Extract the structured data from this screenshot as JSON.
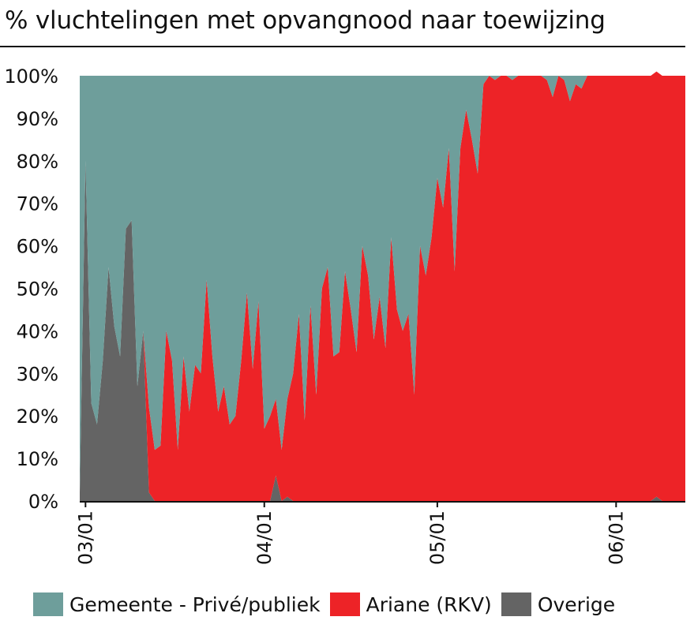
{
  "title": "% vluchtelingen met opvangnood naar toewijzing",
  "chart_data": {
    "type": "area",
    "stacked": true,
    "title": "% vluchtelingen met opvangnood naar toewijzing",
    "xlabel": "",
    "ylabel": "",
    "ylim": [
      0,
      100
    ],
    "y_ticks": [
      "0%",
      "10%",
      "20%",
      "30%",
      "40%",
      "50%",
      "60%",
      "70%",
      "80%",
      "90%",
      "100%"
    ],
    "x_ticks": [
      {
        "label": "03/01",
        "x": "2022-03-01"
      },
      {
        "label": "04/01",
        "x": "2022-04-01"
      },
      {
        "label": "05/01",
        "x": "2022-05-01"
      },
      {
        "label": "06/01",
        "x": "2022-06-01"
      }
    ],
    "x": [
      "2022-02-28",
      "2022-03-01",
      "2022-03-02",
      "2022-03-03",
      "2022-03-04",
      "2022-03-05",
      "2022-03-06",
      "2022-03-07",
      "2022-03-08",
      "2022-03-09",
      "2022-03-10",
      "2022-03-11",
      "2022-03-12",
      "2022-03-13",
      "2022-03-14",
      "2022-03-15",
      "2022-03-16",
      "2022-03-17",
      "2022-03-18",
      "2022-03-19",
      "2022-03-20",
      "2022-03-21",
      "2022-03-22",
      "2022-03-23",
      "2022-03-24",
      "2022-03-25",
      "2022-03-26",
      "2022-03-27",
      "2022-03-28",
      "2022-03-29",
      "2022-03-30",
      "2022-03-31",
      "2022-04-01",
      "2022-04-02",
      "2022-04-03",
      "2022-04-04",
      "2022-04-05",
      "2022-04-06",
      "2022-04-07",
      "2022-04-08",
      "2022-04-09",
      "2022-04-10",
      "2022-04-11",
      "2022-04-12",
      "2022-04-13",
      "2022-04-14",
      "2022-04-15",
      "2022-04-16",
      "2022-04-17",
      "2022-04-18",
      "2022-04-19",
      "2022-04-20",
      "2022-04-21",
      "2022-04-22",
      "2022-04-23",
      "2022-04-24",
      "2022-04-25",
      "2022-04-26",
      "2022-04-27",
      "2022-04-28",
      "2022-04-29",
      "2022-04-30",
      "2022-05-01",
      "2022-05-02",
      "2022-05-03",
      "2022-05-04",
      "2022-05-05",
      "2022-05-06",
      "2022-05-07",
      "2022-05-08",
      "2022-05-09",
      "2022-05-10",
      "2022-05-11",
      "2022-05-12",
      "2022-05-13",
      "2022-05-14",
      "2022-05-15",
      "2022-05-16",
      "2022-05-17",
      "2022-05-18",
      "2022-05-19",
      "2022-05-20",
      "2022-05-21",
      "2022-05-22",
      "2022-05-23",
      "2022-05-24",
      "2022-05-25",
      "2022-05-26",
      "2022-05-27",
      "2022-05-28",
      "2022-05-29",
      "2022-05-30",
      "2022-05-31",
      "2022-06-01",
      "2022-06-02",
      "2022-06-03",
      "2022-06-04",
      "2022-06-05",
      "2022-06-06",
      "2022-06-07",
      "2022-06-08",
      "2022-06-09",
      "2022-06-10",
      "2022-06-11",
      "2022-06-12",
      "2022-06-13"
    ],
    "series": [
      {
        "name": "Overige",
        "color": "#646464",
        "values": [
          2,
          80,
          23,
          18,
          33,
          55,
          41,
          34,
          64,
          66,
          27,
          40,
          2,
          0,
          0,
          0,
          0,
          0,
          0,
          0,
          0,
          0,
          0,
          0,
          0,
          0,
          0,
          0,
          0,
          0,
          0,
          0,
          0,
          0,
          6,
          0,
          1,
          0,
          0,
          0,
          0,
          0,
          0,
          0,
          0,
          0,
          0,
          0,
          0,
          0,
          0,
          0,
          0,
          0,
          0,
          0,
          0,
          0,
          0,
          0,
          0,
          0,
          0,
          0,
          0,
          0,
          0,
          0,
          0,
          0,
          0,
          0,
          0,
          0,
          0,
          0,
          0,
          0,
          0,
          0,
          0,
          0,
          0,
          0,
          0,
          0,
          0,
          0,
          0,
          0,
          0,
          0,
          0,
          0,
          0,
          0,
          0,
          0,
          0,
          0,
          1,
          0,
          0,
          0,
          0,
          0
        ]
      },
      {
        "name": "Ariane (RKV)",
        "color": "#ed2327",
        "values": [
          0,
          0,
          0,
          0,
          0,
          0,
          0,
          0,
          0,
          0,
          0,
          0,
          20,
          12,
          13,
          40,
          33,
          12,
          34,
          21,
          32,
          30,
          52,
          34,
          21,
          27,
          18,
          20,
          33,
          49,
          31,
          47,
          17,
          20,
          18,
          12,
          23,
          30,
          44,
          19,
          46,
          25,
          50,
          55,
          34,
          35,
          54,
          45,
          35,
          60,
          53,
          38,
          48,
          36,
          62,
          45,
          40,
          44,
          25,
          60,
          53,
          62,
          76,
          69,
          83,
          54,
          83,
          92,
          85,
          77,
          98,
          100,
          99,
          100,
          100,
          99,
          100,
          100,
          100,
          100,
          100,
          99,
          95,
          100,
          99,
          94,
          98,
          97,
          100,
          100,
          100,
          100,
          100,
          100,
          100,
          100,
          100,
          100,
          100,
          100,
          100,
          100,
          100,
          100,
          100,
          100
        ]
      },
      {
        "name": "Gemeente - Privé/publiek",
        "color": "#6e9e9b",
        "values": [
          98,
          20,
          77,
          82,
          67,
          45,
          59,
          66,
          36,
          34,
          73,
          60,
          78,
          88,
          87,
          60,
          67,
          88,
          66,
          79,
          68,
          70,
          48,
          66,
          79,
          73,
          82,
          80,
          67,
          51,
          69,
          53,
          83,
          80,
          76,
          88,
          76,
          70,
          56,
          81,
          54,
          75,
          50,
          45,
          66,
          65,
          46,
          55,
          65,
          40,
          47,
          62,
          52,
          64,
          38,
          55,
          60,
          56,
          75,
          40,
          47,
          38,
          24,
          31,
          17,
          46,
          17,
          8,
          15,
          23,
          2,
          0,
          1,
          0,
          0,
          1,
          0,
          0,
          0,
          0,
          0,
          1,
          5,
          0,
          1,
          6,
          2,
          3,
          0,
          0,
          0,
          0,
          0,
          0,
          0,
          0,
          0,
          0,
          0,
          0,
          0,
          0,
          0,
          0,
          0,
          0
        ]
      }
    ],
    "grid": false,
    "legend": "bottom"
  },
  "legend": [
    {
      "label": "Gemeente - Privé/publiek",
      "color": "#6e9e9b"
    },
    {
      "label": "Ariane (RKV)",
      "color": "#ed2327"
    },
    {
      "label": "Overige",
      "color": "#646464"
    }
  ]
}
